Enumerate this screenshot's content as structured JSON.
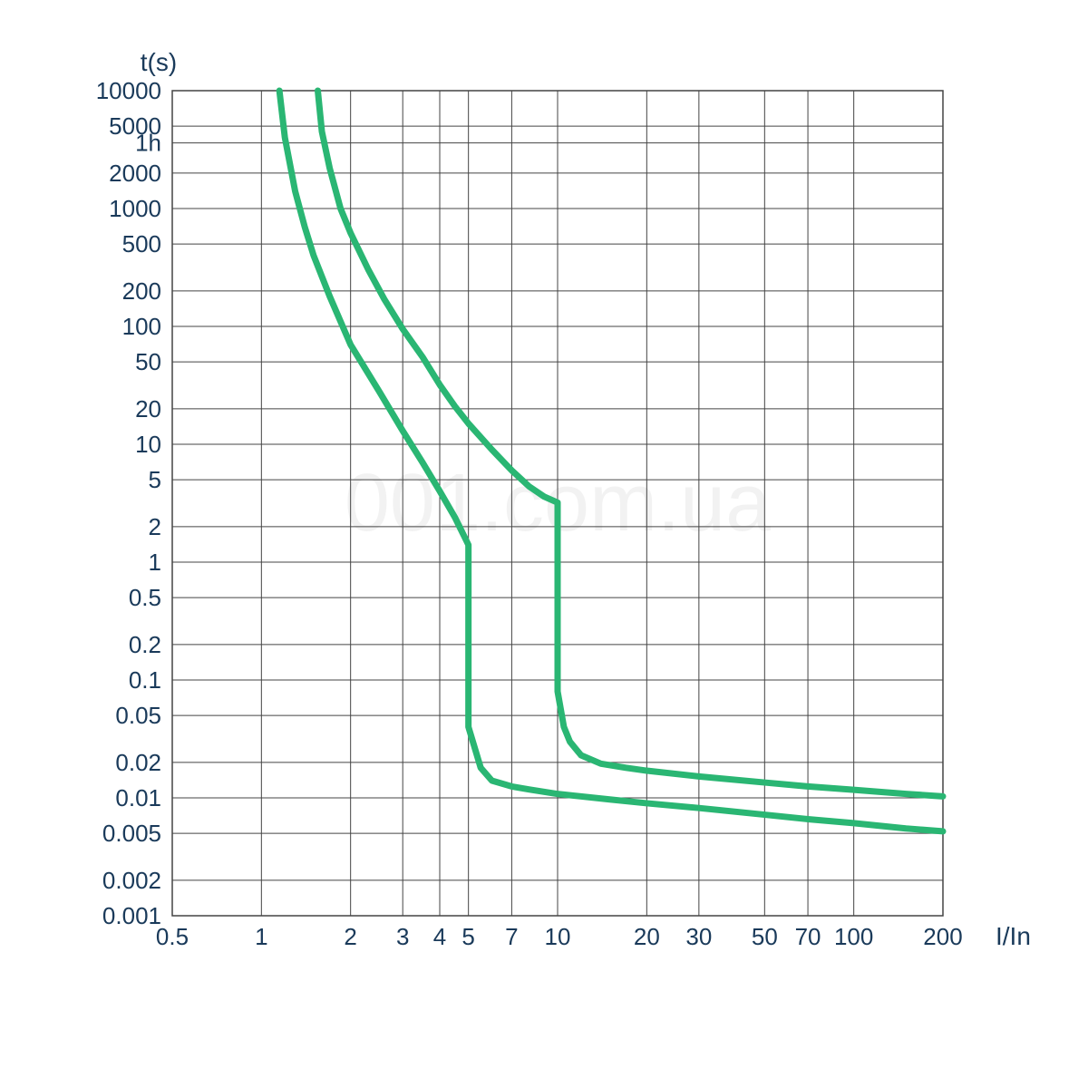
{
  "chart": {
    "type": "line",
    "background_color": "#ffffff",
    "grid_color": "#444444",
    "grid_width": 1,
    "curve_color": "#2ab673",
    "curve_width": 7,
    "axis_label_color": "#1a3a5a",
    "axis_label_fontsize": 26,
    "axis_title_fontsize": 28,
    "y_title": "t(s)",
    "x_title": "I/In",
    "xscale": "log",
    "yscale": "log",
    "xlim": [
      0.5,
      200
    ],
    "ylim": [
      0.001,
      10000
    ],
    "x_ticks": [
      0.5,
      1,
      2,
      3,
      4,
      5,
      7,
      10,
      20,
      30,
      50,
      70,
      100,
      200
    ],
    "x_tick_labels": [
      "0.5",
      "1",
      "2",
      "3",
      "4",
      "5",
      "7",
      "10",
      "20",
      "30",
      "50",
      "70",
      "100",
      "200"
    ],
    "y_ticks": [
      0.001,
      0.002,
      0.005,
      0.01,
      0.02,
      0.05,
      0.1,
      0.2,
      0.5,
      1,
      2,
      5,
      10,
      20,
      50,
      100,
      200,
      500,
      1000,
      2000,
      3600,
      5000,
      10000
    ],
    "y_tick_labels": [
      "0.001",
      "0.002",
      "0.005",
      "0.01",
      "0.02",
      "0.05",
      "0.1",
      "0.2",
      "0.5",
      "1",
      "2",
      "5",
      "10",
      "20",
      "50",
      "100",
      "200",
      "500",
      "1000",
      "2000",
      "1h",
      "5000",
      "10000"
    ],
    "curve_lower": [
      {
        "x": 1.15,
        "y": 10000
      },
      {
        "x": 1.2,
        "y": 4000
      },
      {
        "x": 1.3,
        "y": 1400
      },
      {
        "x": 1.4,
        "y": 700
      },
      {
        "x": 1.5,
        "y": 400
      },
      {
        "x": 1.7,
        "y": 180
      },
      {
        "x": 2.0,
        "y": 70
      },
      {
        "x": 2.5,
        "y": 28
      },
      {
        "x": 3.0,
        "y": 13
      },
      {
        "x": 3.5,
        "y": 7
      },
      {
        "x": 4.0,
        "y": 4
      },
      {
        "x": 4.5,
        "y": 2.4
      },
      {
        "x": 5.0,
        "y": 1.4
      },
      {
        "x": 5.0,
        "y": 0.04
      },
      {
        "x": 5.5,
        "y": 0.018
      },
      {
        "x": 6.0,
        "y": 0.014
      },
      {
        "x": 7.0,
        "y": 0.0125
      },
      {
        "x": 8.0,
        "y": 0.0118
      },
      {
        "x": 10.0,
        "y": 0.0108
      },
      {
        "x": 15.0,
        "y": 0.0097
      },
      {
        "x": 20.0,
        "y": 0.009
      },
      {
        "x": 30.0,
        "y": 0.0082
      },
      {
        "x": 50.0,
        "y": 0.0072
      },
      {
        "x": 70.0,
        "y": 0.0066
      },
      {
        "x": 100.0,
        "y": 0.0061
      },
      {
        "x": 150.0,
        "y": 0.0055
      },
      {
        "x": 200.0,
        "y": 0.0052
      }
    ],
    "curve_upper": [
      {
        "x": 1.55,
        "y": 10000
      },
      {
        "x": 1.6,
        "y": 4500
      },
      {
        "x": 1.7,
        "y": 2200
      },
      {
        "x": 1.85,
        "y": 1000
      },
      {
        "x": 2.0,
        "y": 620
      },
      {
        "x": 2.3,
        "y": 300
      },
      {
        "x": 2.6,
        "y": 170
      },
      {
        "x": 3.0,
        "y": 95
      },
      {
        "x": 3.5,
        "y": 55
      },
      {
        "x": 4.0,
        "y": 32
      },
      {
        "x": 4.5,
        "y": 21
      },
      {
        "x": 5.0,
        "y": 15
      },
      {
        "x": 6.0,
        "y": 9
      },
      {
        "x": 7.0,
        "y": 6
      },
      {
        "x": 8.0,
        "y": 4.4
      },
      {
        "x": 9.0,
        "y": 3.6
      },
      {
        "x": 10.0,
        "y": 3.2
      },
      {
        "x": 10.0,
        "y": 0.08
      },
      {
        "x": 10.5,
        "y": 0.04
      },
      {
        "x": 11.0,
        "y": 0.03
      },
      {
        "x": 12.0,
        "y": 0.023
      },
      {
        "x": 14.0,
        "y": 0.0195
      },
      {
        "x": 17.0,
        "y": 0.018
      },
      {
        "x": 20.0,
        "y": 0.017
      },
      {
        "x": 30.0,
        "y": 0.0152
      },
      {
        "x": 50.0,
        "y": 0.0135
      },
      {
        "x": 70.0,
        "y": 0.0125
      },
      {
        "x": 100.0,
        "y": 0.0117
      },
      {
        "x": 150.0,
        "y": 0.0108
      },
      {
        "x": 200.0,
        "y": 0.0103
      }
    ],
    "watermark": "001.com.ua"
  }
}
